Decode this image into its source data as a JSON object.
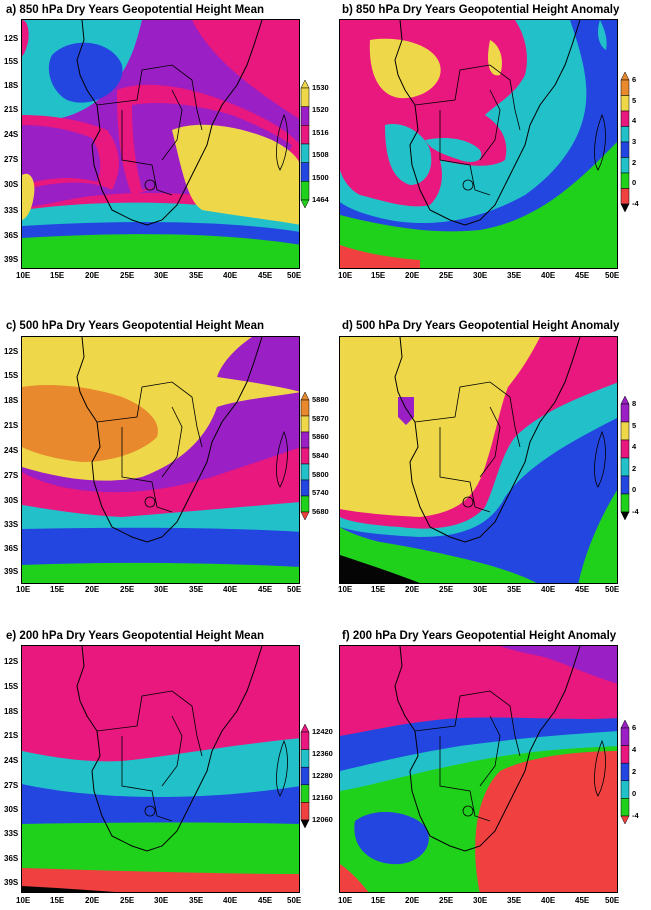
{
  "colors": {
    "yellow": "#eed84a",
    "orange": "#e8892e",
    "magenta": "#e8187e",
    "purple": "#9a1fc4",
    "cyan": "#22c1c9",
    "blue": "#2446e0",
    "green": "#20d11c",
    "red": "#f04040",
    "black": "#050505"
  },
  "axes": {
    "x_labels": [
      "10E",
      "15E",
      "20E",
      "25E",
      "30E",
      "35E",
      "40E",
      "45E",
      "50E"
    ],
    "y_labels": [
      "12S",
      "15S",
      "18S",
      "21S",
      "24S",
      "27S",
      "30S",
      "33S",
      "36S",
      "39S"
    ]
  },
  "panels": [
    {
      "title": "a) 850 hPa Dry Years Geopotential Height Mean",
      "colorbar": {
        "labels": [
          "1530",
          "1520",
          "1516",
          "1508",
          "1500",
          "1464"
        ],
        "colors": [
          "yellow",
          "purple",
          "magenta",
          "cyan",
          "blue",
          "green"
        ],
        "top_color": "yellow",
        "bottom_color": "green"
      }
    },
    {
      "title": "b) 850 hPa Dry Years Geopotential Height Anomaly",
      "colorbar": {
        "labels": [
          "6",
          "5",
          "4",
          "3",
          "2",
          "0",
          "-4"
        ],
        "colors": [
          "orange",
          "yellow",
          "magenta",
          "cyan",
          "blue",
          "cyan",
          "green",
          "red"
        ],
        "top_color": "orange",
        "bottom_color": "black"
      }
    },
    {
      "title": "c) 500 hPa Dry Years Geopotential Height Mean",
      "colorbar": {
        "labels": [
          "5880",
          "5870",
          "5860",
          "5840",
          "5800",
          "5740",
          "5680"
        ],
        "colors": [
          "orange",
          "yellow",
          "purple",
          "magenta",
          "cyan",
          "blue",
          "green"
        ],
        "top_color": "orange",
        "bottom_color": "red"
      }
    },
    {
      "title": "d) 500 hPa Dry Years Geopotential Height Anomaly",
      "colorbar": {
        "labels": [
          "8",
          "5",
          "4",
          "2",
          "0",
          "-4"
        ],
        "colors": [
          "purple",
          "yellow",
          "magenta",
          "cyan",
          "blue",
          "green"
        ],
        "top_color": "purple",
        "bottom_color": "black"
      }
    },
    {
      "title": "e) 200 hPa Dry Years Geopotential Height Mean",
      "colorbar": {
        "labels": [
          "12420",
          "12360",
          "12280",
          "12160",
          "12060"
        ],
        "colors": [
          "magenta",
          "cyan",
          "blue",
          "green",
          "red"
        ],
        "top_color": "magenta",
        "bottom_color": "black"
      }
    },
    {
      "title": "f) 200 hPa Dry Years Geopotential Height Anomaly",
      "colorbar": {
        "labels": [
          "6",
          "4",
          "2",
          "0",
          "-4"
        ],
        "colors": [
          "purple",
          "magenta",
          "blue",
          "cyan",
          "green"
        ],
        "top_color": "purple",
        "bottom_color": "red"
      }
    }
  ]
}
